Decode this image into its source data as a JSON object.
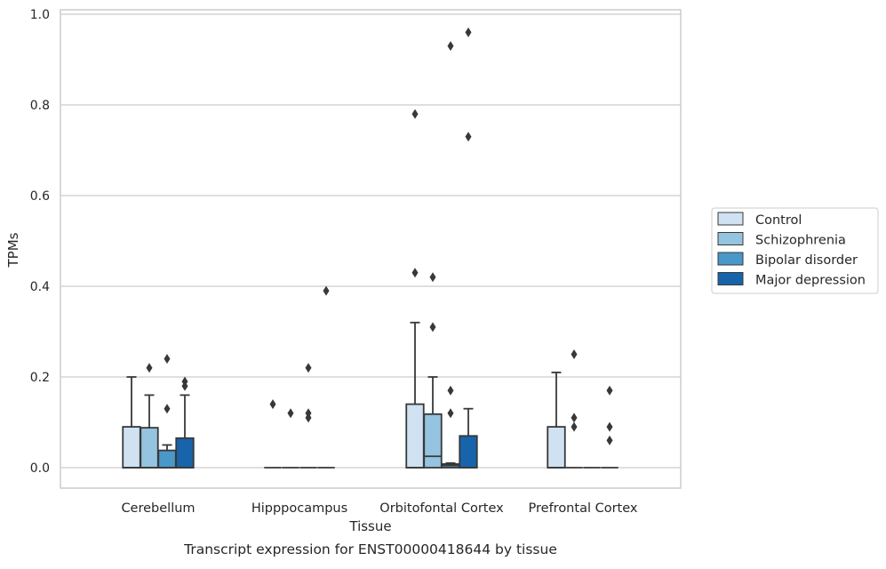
{
  "chart_data": {
    "type": "boxplot",
    "title": "Transcript expression for ENST00000418644 by tissue",
    "xlabel": "Tissue",
    "ylabel": "TPMs",
    "ylim": [
      -0.045,
      1.01
    ],
    "yticks": [
      0.0,
      0.2,
      0.4,
      0.6,
      0.8,
      1.0
    ],
    "ytick_labels": [
      "0.0",
      "0.2",
      "0.4",
      "0.6",
      "0.8",
      "1.0"
    ],
    "grid": true,
    "legend_position": "right",
    "categories": [
      "Cerebellum",
      "Hipppocampus",
      "Orbitofontal Cortex",
      "Prefrontal Cortex"
    ],
    "series": [
      {
        "name": "Control",
        "color": "#d0e1f2",
        "boxes": [
          {
            "q1": 0.0,
            "median": 0.0,
            "q3": 0.09,
            "whisker_low": 0.0,
            "whisker_high": 0.2,
            "outliers": []
          },
          {
            "q1": 0.0,
            "median": 0.0,
            "q3": 0.0,
            "whisker_low": 0.0,
            "whisker_high": 0.0,
            "outliers": [
              0.14
            ]
          },
          {
            "q1": 0.0,
            "median": 0.0,
            "q3": 0.14,
            "whisker_low": 0.0,
            "whisker_high": 0.32,
            "outliers": [
              0.43,
              0.78
            ]
          },
          {
            "q1": 0.0,
            "median": 0.0,
            "q3": 0.09,
            "whisker_low": 0.0,
            "whisker_high": 0.21,
            "outliers": []
          }
        ]
      },
      {
        "name": "Schizophrenia",
        "color": "#94c4df",
        "boxes": [
          {
            "q1": 0.0,
            "median": 0.0,
            "q3": 0.088,
            "whisker_low": 0.0,
            "whisker_high": 0.16,
            "outliers": [
              0.22
            ]
          },
          {
            "q1": 0.0,
            "median": 0.0,
            "q3": 0.0,
            "whisker_low": 0.0,
            "whisker_high": 0.0,
            "outliers": [
              0.12
            ]
          },
          {
            "q1": 0.0,
            "median": 0.025,
            "q3": 0.118,
            "whisker_low": 0.0,
            "whisker_high": 0.2,
            "outliers": [
              0.31,
              0.42
            ]
          },
          {
            "q1": 0.0,
            "median": 0.0,
            "q3": 0.0,
            "whisker_low": 0.0,
            "whisker_high": 0.0,
            "outliers": [
              0.09,
              0.11,
              0.25
            ]
          }
        ]
      },
      {
        "name": "Bipolar disorder",
        "color": "#4a98c9",
        "boxes": [
          {
            "q1": 0.0,
            "median": 0.0,
            "q3": 0.038,
            "whisker_low": 0.0,
            "whisker_high": 0.05,
            "outliers": [
              0.13,
              0.24
            ]
          },
          {
            "q1": 0.0,
            "median": 0.0,
            "q3": 0.0,
            "whisker_low": 0.0,
            "whisker_high": 0.0,
            "outliers": [
              0.11,
              0.12,
              0.22
            ]
          },
          {
            "q1": 0.0,
            "median": 0.005,
            "q3": 0.008,
            "whisker_low": 0.0,
            "whisker_high": 0.01,
            "outliers": [
              0.12,
              0.17,
              0.93
            ]
          },
          {
            "q1": 0.0,
            "median": 0.0,
            "q3": 0.0,
            "whisker_low": 0.0,
            "whisker_high": 0.0,
            "outliers": []
          }
        ]
      },
      {
        "name": "Major depression",
        "color": "#1764ab",
        "boxes": [
          {
            "q1": 0.0,
            "median": 0.0,
            "q3": 0.065,
            "whisker_low": 0.0,
            "whisker_high": 0.16,
            "outliers": [
              0.18,
              0.19
            ]
          },
          {
            "q1": 0.0,
            "median": 0.0,
            "q3": 0.0,
            "whisker_low": 0.0,
            "whisker_high": 0.0,
            "outliers": [
              0.39
            ]
          },
          {
            "q1": 0.0,
            "median": 0.0,
            "q3": 0.07,
            "whisker_low": 0.0,
            "whisker_high": 0.13,
            "outliers": [
              0.73,
              0.96
            ]
          },
          {
            "q1": 0.0,
            "median": 0.0,
            "q3": 0.0,
            "whisker_low": 0.0,
            "whisker_high": 0.0,
            "outliers": [
              0.06,
              0.09,
              0.17
            ]
          }
        ]
      }
    ]
  }
}
